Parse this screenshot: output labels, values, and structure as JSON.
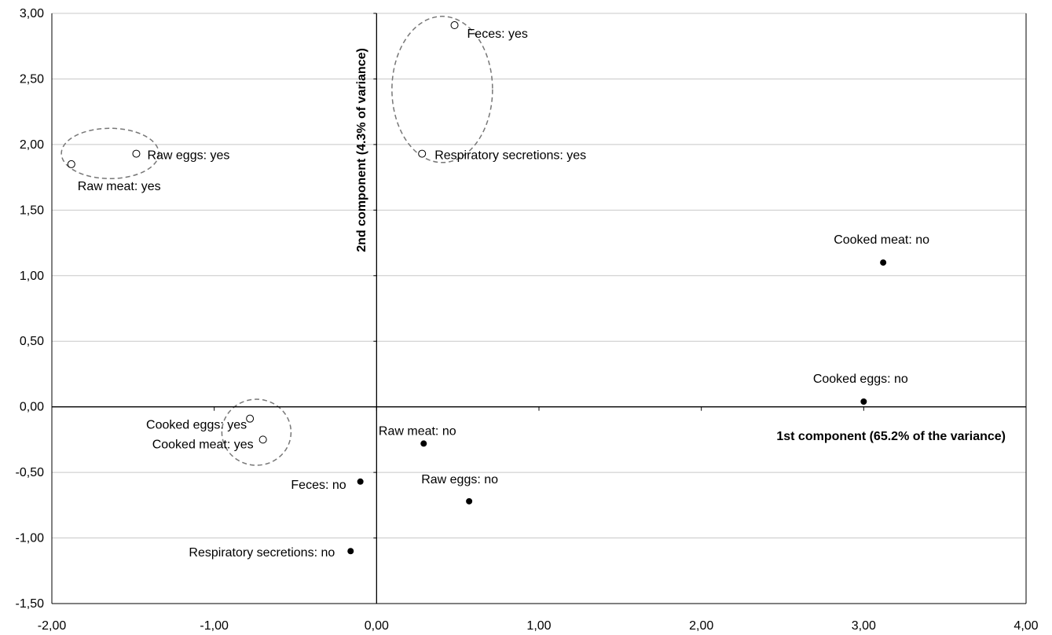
{
  "chart_data": {
    "type": "scatter",
    "title": "",
    "xlabel": "1st component  (65.2% of the variance)",
    "ylabel": "2nd component  (4.3%  of variance)",
    "xlim": [
      -2,
      4
    ],
    "ylim": [
      -1.5,
      3
    ],
    "x_ticks": [
      "-2,00",
      "-1,00",
      "0,00",
      "1,00",
      "2,00",
      "3,00",
      "4,00"
    ],
    "y_ticks": [
      "3,00",
      "2,50",
      "2,00",
      "1,50",
      "1,00",
      "0,50",
      "0,00",
      "-0,50",
      "-1,00",
      "-1,50"
    ],
    "grid": "horizontal",
    "legend": "none",
    "series": [
      {
        "marker": "open-circle",
        "points": [
          {
            "label": "Feces: yes",
            "x": 0.48,
            "y": 2.91
          },
          {
            "label": "Respiratory secretions: yes",
            "x": 0.28,
            "y": 1.93
          },
          {
            "label": "Raw eggs: yes",
            "x": -1.48,
            "y": 1.93
          },
          {
            "label": "Raw meat: yes",
            "x": -1.88,
            "y": 1.85
          },
          {
            "label": "Cooked eggs: yes",
            "x": -0.78,
            "y": -0.09
          },
          {
            "label": "Cooked meat: yes",
            "x": -0.7,
            "y": -0.25
          }
        ]
      },
      {
        "marker": "filled-dot",
        "points": [
          {
            "label": "Cooked meat: no",
            "x": 3.12,
            "y": 1.1
          },
          {
            "label": "Cooked eggs: no",
            "x": 3.0,
            "y": 0.04
          },
          {
            "label": "Raw meat: no",
            "x": 0.29,
            "y": -0.28
          },
          {
            "label": "Raw eggs: no",
            "x": 0.57,
            "y": -0.72
          },
          {
            "label": "Feces: no",
            "x": -0.1,
            "y": -0.57
          },
          {
            "label": "Respiratory secretions: no",
            "x": -0.16,
            "y": -1.1
          }
        ]
      }
    ],
    "annotations": [
      {
        "type": "dashed-ellipse",
        "groups": [
          "Feces: yes",
          "Respiratory secretions: yes"
        ]
      },
      {
        "type": "dashed-ellipse",
        "groups": [
          "Raw eggs: yes",
          "Raw meat: yes"
        ]
      },
      {
        "type": "dashed-ellipse",
        "groups": [
          "Cooked eggs: yes",
          "Cooked meat: yes"
        ]
      }
    ]
  }
}
